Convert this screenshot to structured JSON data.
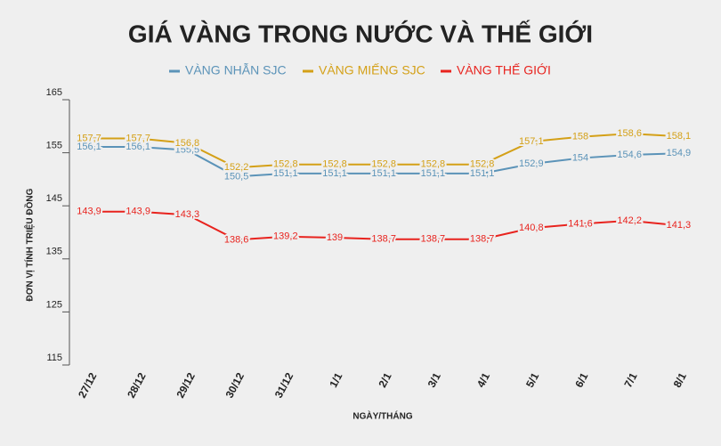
{
  "chart_data": {
    "type": "line",
    "title": "GIÁ VÀNG TRONG NƯỚC VÀ THẾ GIỚI",
    "y_label": "ĐƠN VỊ TÍNH TRIỆU ĐỒNG",
    "x_label": "NGÀY/THÁNG",
    "categories": [
      "27/12",
      "28/12",
      "29/12",
      "30/12",
      "31/12",
      "1/1",
      "2/1",
      "3/1",
      "4/1",
      "5/1",
      "6/1",
      "7/1",
      "8/1"
    ],
    "series": [
      {
        "name": "VÀNG NHẪN SJC",
        "color": "#5b93b8",
        "values": [
          156.1,
          156.1,
          155.5,
          150.5,
          151.1,
          151.1,
          151.1,
          151.1,
          151.1,
          152.9,
          154,
          154.6,
          154.9
        ],
        "value_labels": [
          "156,1",
          "156,1",
          "155,5",
          "150,5",
          "151,1",
          "151,1",
          "151,1",
          "151,1",
          "151,1",
          "152,9",
          "154",
          "154,6",
          "154,9"
        ]
      },
      {
        "name": "VÀNG MIẾNG SJC",
        "color": "#d4a017",
        "values": [
          157.7,
          157.7,
          156.8,
          152.2,
          152.8,
          152.8,
          152.8,
          152.8,
          152.8,
          157.1,
          158,
          158.6,
          158.1
        ],
        "value_labels": [
          "157,7",
          "157,7",
          "156,8",
          "152,2",
          "152,8",
          "152,8",
          "152,8",
          "152,8",
          "152,8",
          "157,1",
          "158",
          "158,6",
          "158,1"
        ]
      },
      {
        "name": "VÀNG THẾ GIỚI",
        "color": "#e8231e",
        "values": [
          143.9,
          143.9,
          143.3,
          138.6,
          139.2,
          139,
          138.7,
          138.7,
          138.7,
          140.8,
          141.6,
          142.2,
          141.3
        ],
        "value_labels": [
          "143,9",
          "143,9",
          "143,3",
          "138,6",
          "139,2",
          "139",
          "138,7",
          "138,7",
          "138,7",
          "140,8",
          "141,6",
          "142,2",
          "141,3"
        ]
      }
    ],
    "ylim": [
      115,
      165
    ],
    "yticks": [
      115,
      125,
      135,
      145,
      155,
      165
    ]
  }
}
